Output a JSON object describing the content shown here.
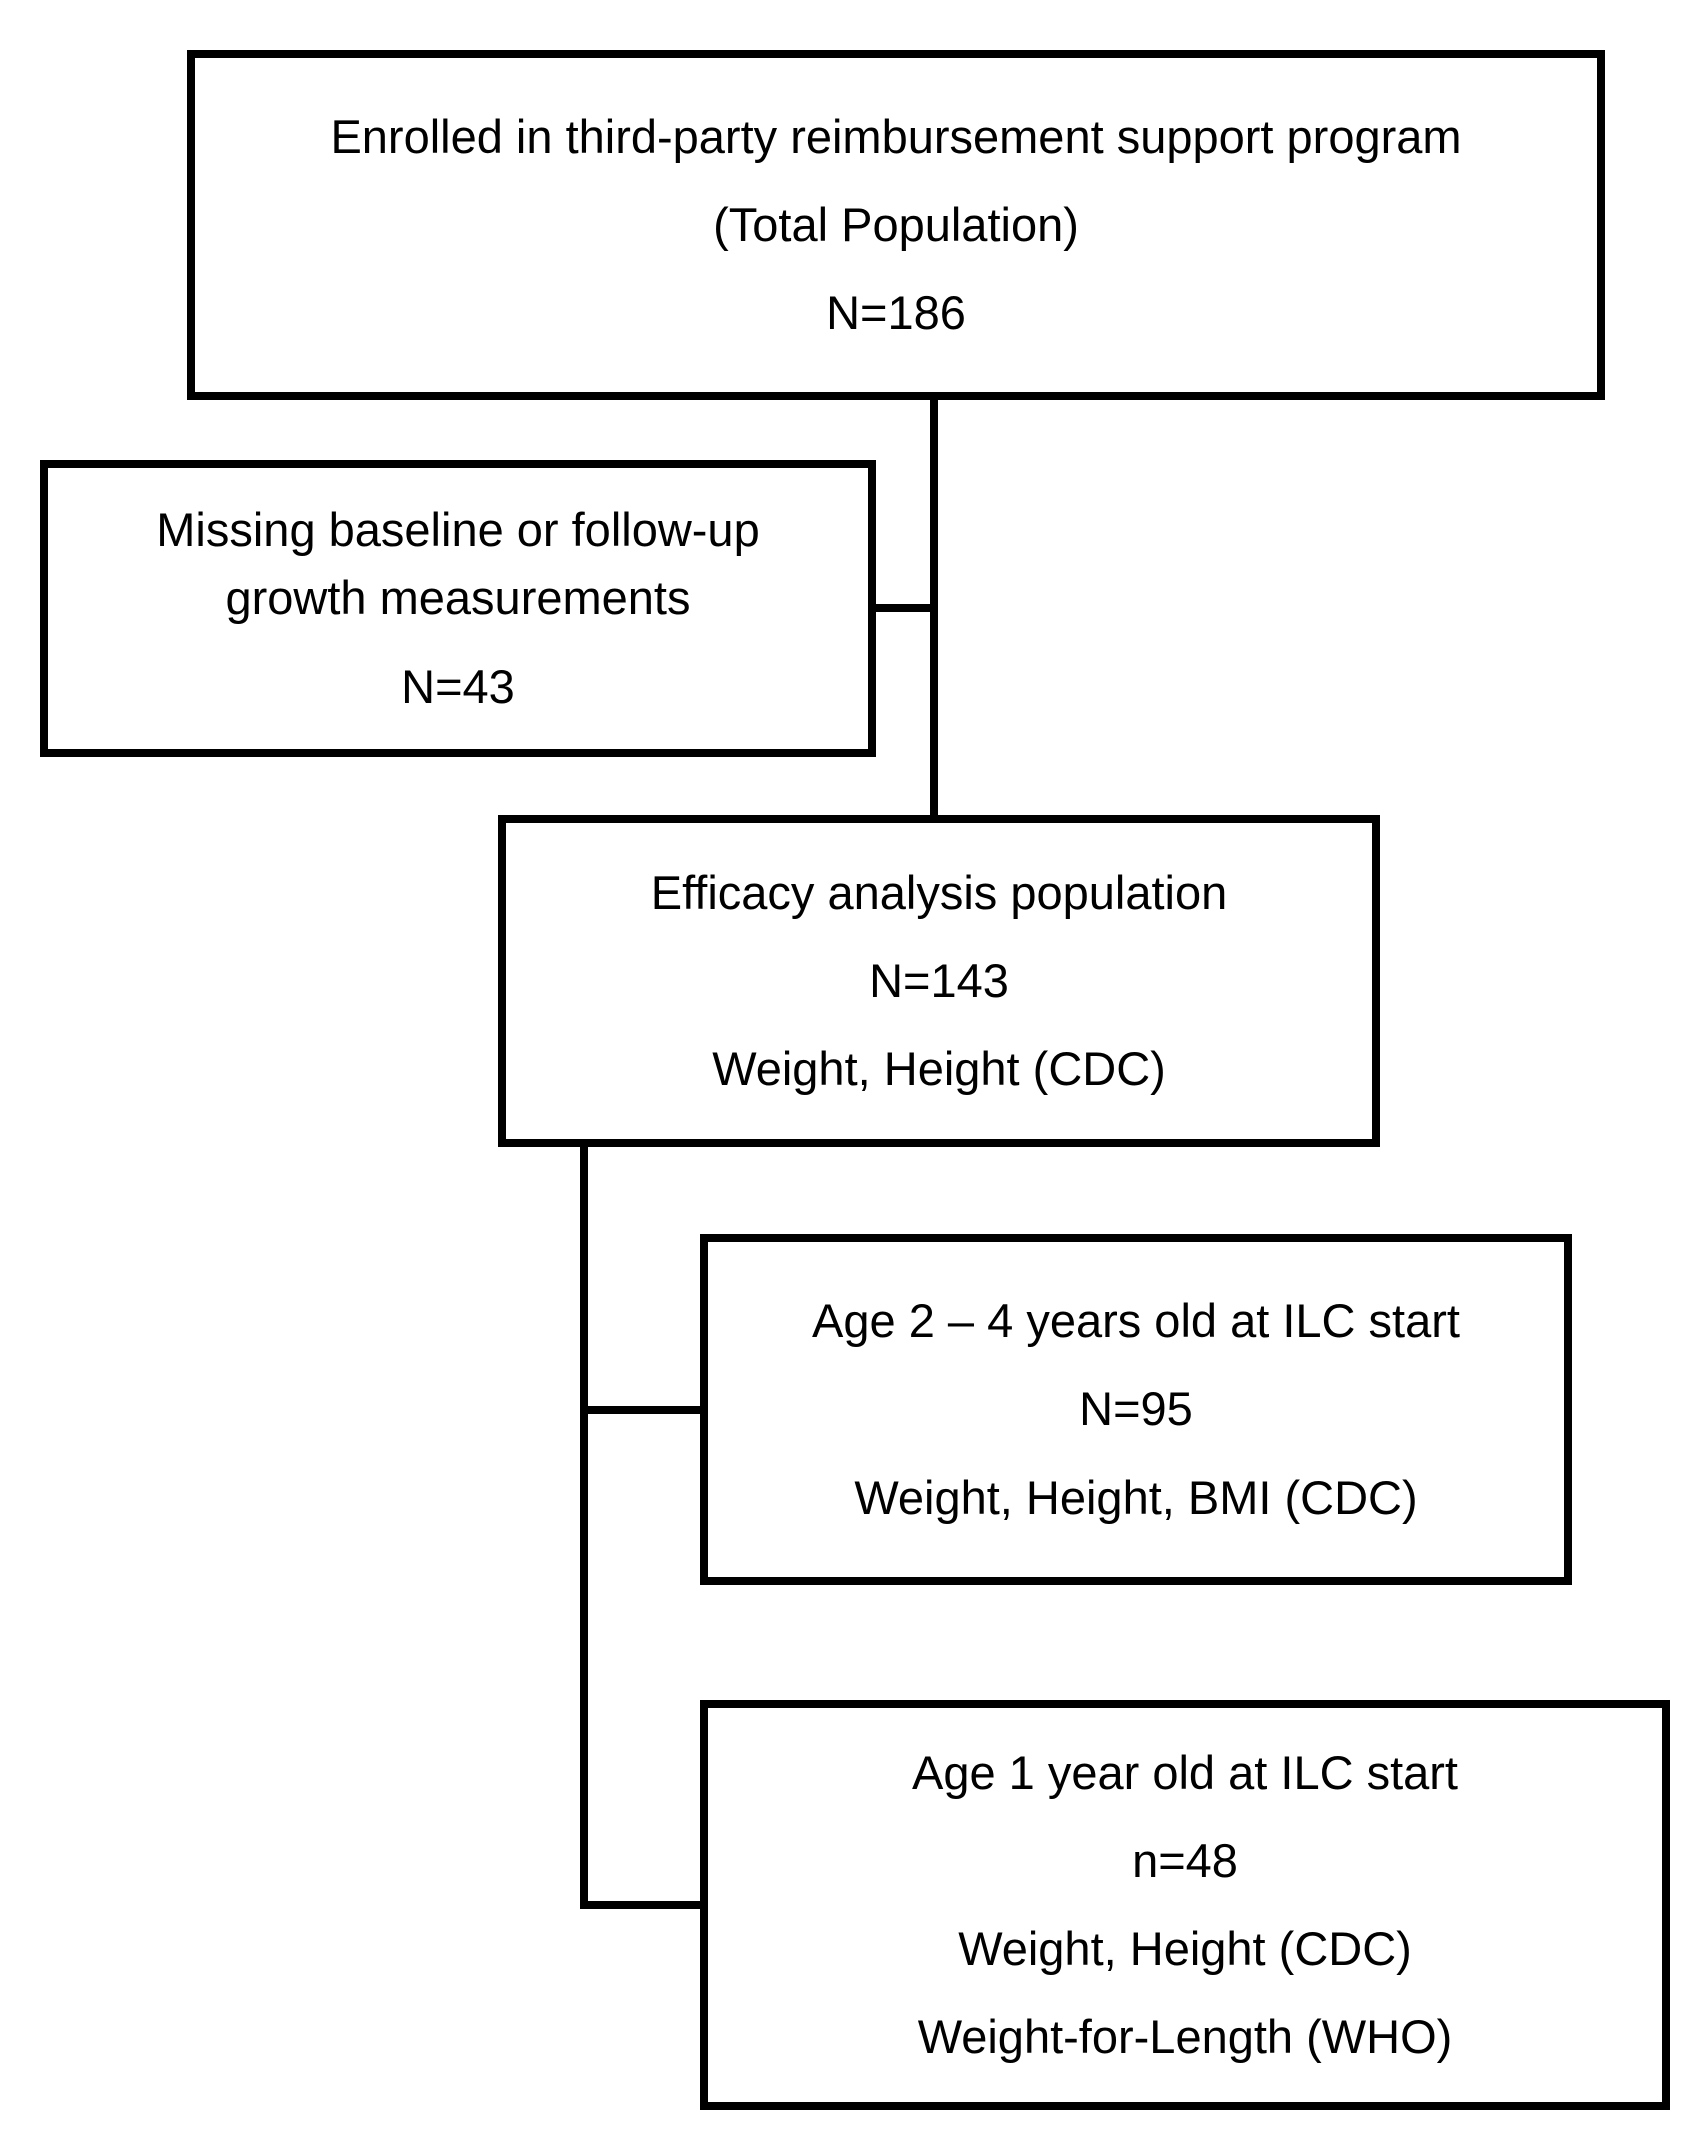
{
  "diagram": {
    "type": "flowchart",
    "colors": {
      "line": "#000000",
      "background": "#ffffff",
      "text": "#000000"
    },
    "boxes": {
      "total_population": {
        "lines": [
          "Enrolled in third-party reimbursement support program",
          "(Total Population)",
          "N=186"
        ]
      },
      "excluded": {
        "lines": [
          "Missing baseline or follow-up growth measurements",
          "N=43"
        ]
      },
      "efficacy": {
        "lines": [
          "Efficacy analysis population",
          "N=143",
          "Weight, Height (CDC)"
        ]
      },
      "age_2_4": {
        "lines": [
          "Age 2 – 4 years old at ILC start",
          "N=95",
          "Weight, Height, BMI (CDC)"
        ]
      },
      "age_1": {
        "lines": [
          "Age 1 year old at ILC start",
          "n=48",
          "Weight, Height (CDC)",
          "Weight-for-Length (WHO)"
        ]
      }
    }
  }
}
